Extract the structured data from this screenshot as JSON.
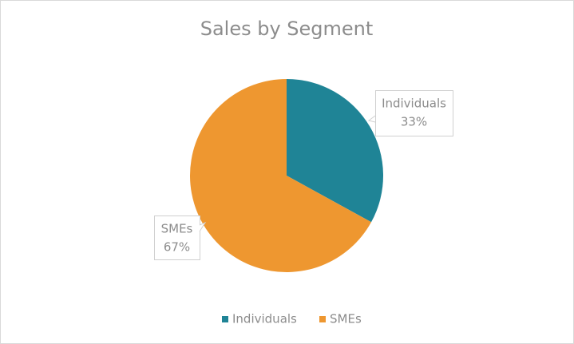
{
  "chart_data": {
    "type": "pie",
    "title": "Sales by Segment",
    "categories": [
      "Individuals",
      "SMEs"
    ],
    "values": [
      33,
      67
    ],
    "value_labels": [
      "33%",
      "67%"
    ],
    "colors": [
      "#1f8496",
      "#ee9730"
    ],
    "legend": "bottom"
  }
}
